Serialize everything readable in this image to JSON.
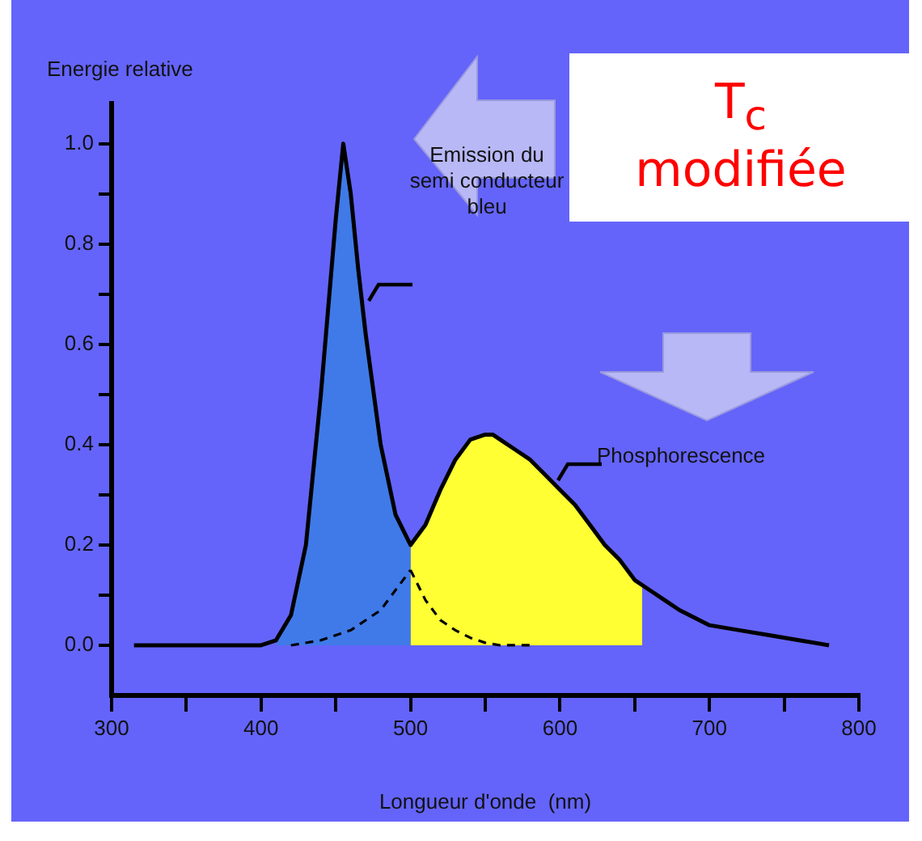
{
  "chart_data": {
    "type": "area",
    "ylabel": "Energie relative",
    "xlabel": "Longueur d'onde  (nm)",
    "xlim": [
      300,
      800
    ],
    "xticks": [
      300,
      {
        "value": 350,
        "label": null
      },
      400,
      {
        "value": 450,
        "label": null
      },
      500,
      {
        "value": 550,
        "label": null
      },
      600,
      {
        "value": 650,
        "label": null
      },
      700,
      {
        "value": 750,
        "label": null
      },
      800
    ],
    "ylim": [
      -0.1,
      1.08
    ],
    "yticks": [
      {
        "value": 0,
        "label": "0.0"
      },
      {
        "value": 0.1,
        "label": null
      },
      0.2,
      {
        "value": 0.3,
        "label": null
      },
      0.4,
      {
        "value": 0.5,
        "label": null
      },
      0.6,
      {
        "value": 0.7,
        "label": null
      },
      0.8,
      {
        "value": 0.9,
        "label": null
      },
      {
        "value": 1,
        "label": "1.0"
      }
    ],
    "grid": false,
    "legend": false,
    "marker": "none",
    "series": [
      {
        "color": "#3f7ae8",
        "x": [
          410,
          420,
          430,
          440,
          450,
          455,
          460,
          465,
          470,
          480,
          490,
          500
        ],
        "values": [
          0,
          0.06,
          0.2,
          0.5,
          0.85,
          1.0,
          0.9,
          0.75,
          0.62,
          0.4,
          0.26,
          0.2
        ]
      },
      {
        "color": "#ffff33",
        "x": [
          500,
          500,
          510,
          520,
          530,
          540,
          550,
          555,
          560,
          570,
          580,
          590,
          600,
          610,
          620,
          630,
          640,
          650,
          655,
          655
        ],
        "values": [
          0,
          0.2,
          0.24,
          0.31,
          0.37,
          0.41,
          0.42,
          0.42,
          0.41,
          0.39,
          0.37,
          0.34,
          0.31,
          0.28,
          0.24,
          0.2,
          0.17,
          0.13,
          0.12,
          0
        ]
      },
      {
        "type": "line",
        "color": "#000000",
        "line_style": "dashed",
        "x": [
          420,
          440,
          460,
          480,
          500
        ],
        "values": [
          0,
          0.01,
          0.03,
          0.07,
          0.15
        ]
      },
      {
        "type": "line",
        "color": "#000000",
        "line_style": "dashed",
        "x": [
          500,
          510,
          520,
          530,
          540,
          550,
          560,
          580
        ],
        "values": [
          0.15,
          0.09,
          0.05,
          0.03,
          0.015,
          0.005,
          0,
          0
        ]
      },
      {
        "type": "line",
        "color": "#000000",
        "line_style": "solid",
        "x": [
          315,
          400,
          410,
          420,
          430,
          440,
          450,
          455,
          460,
          465,
          470,
          480,
          490,
          500,
          510,
          520,
          530,
          540,
          550,
          555,
          560,
          570,
          580,
          590,
          600,
          610,
          620,
          630,
          640,
          650,
          660,
          670,
          680,
          700,
          720,
          740,
          760,
          780
        ],
        "values": [
          0,
          0,
          0.01,
          0.06,
          0.2,
          0.5,
          0.85,
          1.0,
          0.9,
          0.75,
          0.62,
          0.4,
          0.26,
          0.2,
          0.24,
          0.31,
          0.37,
          0.41,
          0.42,
          0.42,
          0.41,
          0.39,
          0.37,
          0.34,
          0.31,
          0.28,
          0.24,
          0.2,
          0.17,
          0.13,
          0.11,
          0.09,
          0.07,
          0.04,
          0.03,
          0.02,
          0.01,
          0
        ]
      }
    ],
    "annotations": [
      "Emission du semi conducteur bleu",
      {
        "text": "Phosphorescence",
        "x": 590,
        "y": 0.35
      },
      "T$_{c}$ modifiée"
    ]
  }
}
